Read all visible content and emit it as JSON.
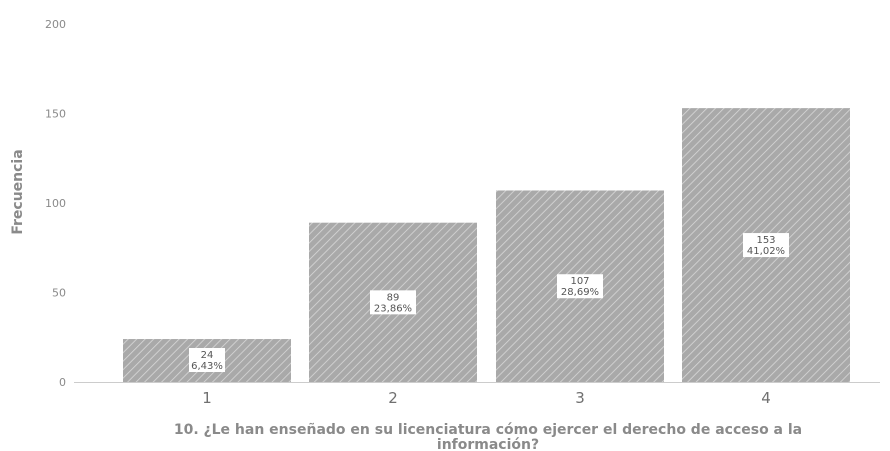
{
  "chart_data": {
    "type": "bar",
    "categories": [
      "1",
      "2",
      "3",
      "4"
    ],
    "values": [
      24,
      89,
      107,
      153
    ],
    "percentages": [
      "6,43%",
      "23,86%",
      "28,69%",
      "41,02%"
    ],
    "ylabel": "Frecuencia",
    "xlabel_lines": [
      "10. ¿Le han enseñado en su licenciatura cómo ejercer el derecho de acceso a la",
      "información?"
    ],
    "ylim": [
      0,
      200
    ],
    "yticks": [
      0,
      50,
      100,
      150,
      200
    ],
    "bar_color": "#a9a9a9",
    "hatch_color": "#ffffff",
    "grid": false,
    "legend": "none"
  }
}
